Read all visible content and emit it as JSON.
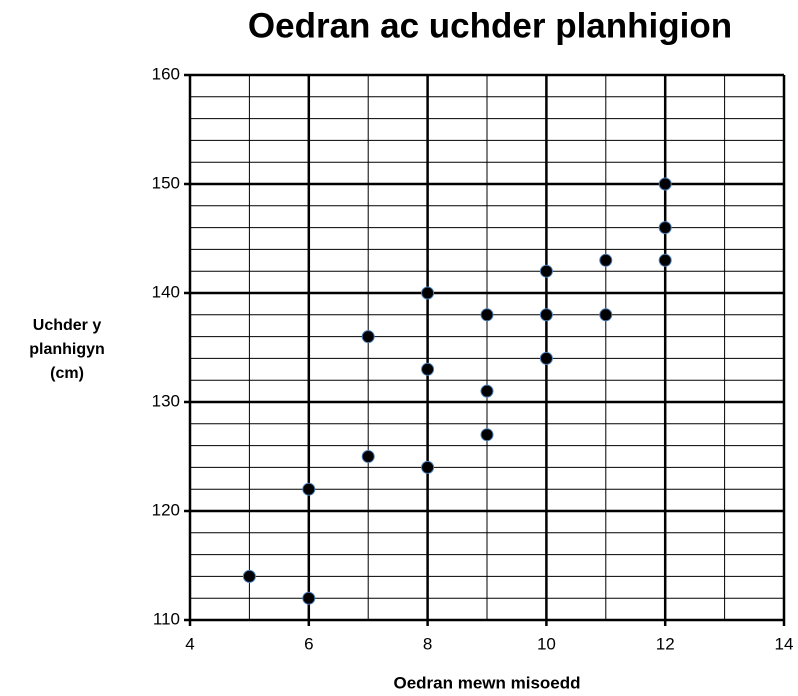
{
  "chart_data": {
    "type": "scatter",
    "title": "Oedran ac uchder planhigion",
    "xlabel": "Oedran mewn misoedd",
    "ylabel": [
      "Uchder y",
      "planhigyn",
      "(cm)"
    ],
    "x": [
      5,
      6,
      6,
      7,
      7,
      8,
      8,
      8,
      9,
      9,
      9,
      10,
      10,
      10,
      11,
      11,
      12,
      12,
      12
    ],
    "y": [
      114,
      112,
      122,
      125,
      136,
      124,
      133,
      140,
      127,
      131,
      138,
      134,
      138,
      142,
      138,
      143,
      143,
      146,
      150
    ],
    "color": "#000000",
    "xlim": [
      4,
      14
    ],
    "xticks": [
      4,
      6,
      8,
      10,
      12,
      14
    ],
    "ylim": [
      110,
      160
    ],
    "yticks": [
      110,
      120,
      130,
      140,
      150,
      160
    ],
    "grid": true,
    "minor_grid": {
      "x": 1,
      "y": 2
    }
  }
}
